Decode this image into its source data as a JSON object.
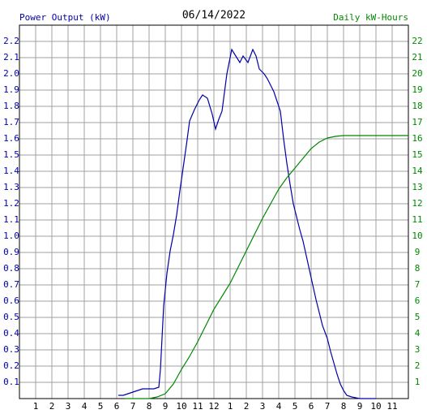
{
  "chart_data": {
    "type": "line",
    "title": "06/14/2022",
    "ylabel": "Power Output (kW)",
    "y2label": "Daily kW-Hours",
    "xlim": [
      0,
      24
    ],
    "xticks": [
      1,
      2,
      3,
      4,
      5,
      6,
      7,
      8,
      9,
      10,
      11,
      12,
      {
        "value": 13,
        "label": "1"
      },
      {
        "value": 14,
        "label": "2"
      },
      {
        "value": 15,
        "label": "3"
      },
      {
        "value": 16,
        "label": "4"
      },
      {
        "value": 17,
        "label": "5"
      },
      {
        "value": 18,
        "label": "6"
      },
      {
        "value": 19,
        "label": "7"
      },
      {
        "value": 20,
        "label": "8"
      },
      {
        "value": 21,
        "label": "9"
      },
      {
        "value": 22,
        "label": "10"
      },
      {
        "value": 23,
        "label": "11"
      }
    ],
    "ylim": [
      0,
      2.3
    ],
    "yticks": [
      0.1,
      0.2,
      0.3,
      0.4,
      0.5,
      0.6,
      0.7,
      0.8,
      0.9,
      {
        "value": 1,
        "label": "1.0"
      },
      1.1,
      1.2,
      1.3,
      1.4,
      1.5,
      1.6,
      1.7,
      1.8,
      1.9,
      {
        "value": 2,
        "label": "2.0"
      },
      2.1,
      2.2
    ],
    "y2lim": [
      0,
      23
    ],
    "y2ticks": [
      1,
      2,
      3,
      4,
      5,
      6,
      7,
      8,
      9,
      10,
      11,
      12,
      13,
      14,
      15,
      16,
      17,
      18,
      19,
      20,
      21,
      22
    ],
    "grid": true,
    "series": [
      {
        "name": "Power Output (kW)",
        "color": "#0000aa",
        "x": [
          6.1,
          6.4,
          6.7,
          7.0,
          7.3,
          7.6,
          8.0,
          8.3,
          8.6,
          8.7,
          8.9,
          9.1,
          9.3,
          9.5,
          9.7,
          9.9,
          10.1,
          10.3,
          10.5,
          10.8,
          11.1,
          11.3,
          11.6,
          11.9,
          12.1,
          12.3,
          12.5,
          12.8,
          13.1,
          13.6,
          13.8,
          14.1,
          14.4,
          14.6,
          14.8,
          15.1,
          15.3,
          15.5,
          15.7,
          15.9,
          16.1,
          16.3,
          16.5,
          16.7,
          16.9,
          17.1,
          17.3,
          17.5,
          17.7,
          17.9,
          18.1,
          18.3,
          18.5,
          18.7,
          19.0,
          19.2,
          19.4,
          19.6,
          19.8,
          20.0,
          20.2,
          20.5,
          21.0,
          22.0
        ],
        "values": [
          0.02,
          0.02,
          0.03,
          0.04,
          0.05,
          0.06,
          0.06,
          0.06,
          0.07,
          0.18,
          0.57,
          0.77,
          0.91,
          1.01,
          1.13,
          1.28,
          1.42,
          1.56,
          1.71,
          1.78,
          1.84,
          1.87,
          1.85,
          1.75,
          1.66,
          1.72,
          1.77,
          2.0,
          2.15,
          2.07,
          2.11,
          2.07,
          2.15,
          2.11,
          2.03,
          2.0,
          1.97,
          1.93,
          1.89,
          1.83,
          1.77,
          1.6,
          1.45,
          1.32,
          1.2,
          1.12,
          1.04,
          0.97,
          0.88,
          0.79,
          0.7,
          0.61,
          0.53,
          0.45,
          0.37,
          0.29,
          0.22,
          0.15,
          0.09,
          0.05,
          0.02,
          0.01,
          0,
          0
        ]
      },
      {
        "name": "Daily kW-Hours",
        "color": "#008800",
        "axis": "y2",
        "x": [
          6.5,
          8.0,
          8.5,
          9.0,
          9.5,
          10.0,
          10.5,
          11.0,
          11.5,
          12.0,
          12.5,
          13.0,
          13.5,
          14.0,
          14.5,
          15.0,
          15.5,
          16.0,
          16.5,
          17.0,
          17.5,
          18.0,
          18.5,
          19.0,
          19.5,
          20.0,
          24.0
        ],
        "values": [
          0,
          0,
          0.1,
          0.3,
          0.9,
          1.8,
          2.6,
          3.5,
          4.5,
          5.5,
          6.3,
          7.1,
          8.1,
          9.1,
          10.1,
          11.1,
          12.0,
          12.9,
          13.6,
          14.2,
          14.8,
          15.4,
          15.8,
          16.05,
          16.15,
          16.2,
          16.2
        ]
      }
    ]
  }
}
